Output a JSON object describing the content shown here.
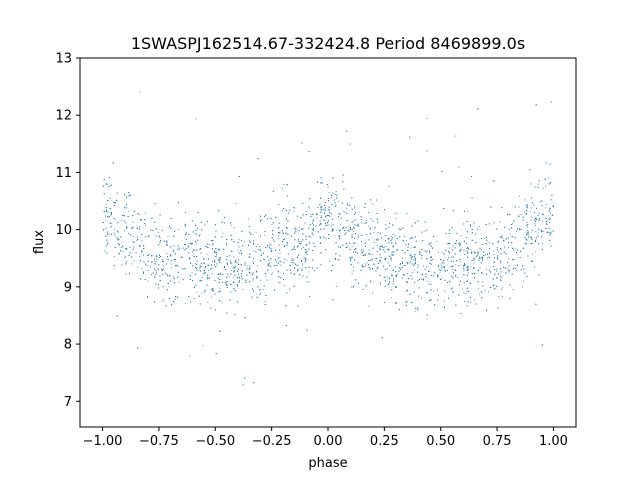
{
  "chart_data": {
    "type": "scatter",
    "title": "1SWASPJ162514.67-332424.8 Period 8469899.0s",
    "xlabel": "phase",
    "ylabel": "flux",
    "xlim": [
      -1.1,
      1.1
    ],
    "ylim": [
      6.55,
      13.0
    ],
    "xticks": [
      -1.0,
      -0.75,
      -0.5,
      -0.25,
      0.0,
      0.25,
      0.5,
      0.75,
      1.0
    ],
    "xtick_labels": [
      "−1.00",
      "−0.75",
      "−0.50",
      "−0.25",
      "0.00",
      "0.25",
      "0.50",
      "0.75",
      "1.00"
    ],
    "yticks": [
      7,
      8,
      9,
      10,
      11,
      12,
      13
    ],
    "ytick_labels": [
      "7",
      "8",
      "9",
      "10",
      "11",
      "12",
      "13"
    ],
    "grid": false,
    "marker_color": "#1f77b4",
    "curve_description": "dense folded light curve, mirrored about phase 0; higher flux near phase 0 and ±1, lower near ±0.5",
    "series": [
      {
        "points_x": [
          -1.0,
          -0.9,
          -0.8,
          -0.7,
          -0.6,
          -0.5,
          -0.4,
          -0.3,
          -0.2,
          -0.1,
          0.0,
          0.1,
          0.2,
          0.3,
          0.4,
          0.5,
          0.6,
          0.7,
          0.8,
          0.9,
          1.0
        ],
        "mean_y": [
          10.3,
          10.0,
          9.7,
          9.4,
          9.5,
          9.4,
          9.35,
          9.5,
          9.7,
          9.8,
          10.3,
          9.8,
          9.7,
          9.5,
          9.35,
          9.4,
          9.5,
          9.4,
          9.7,
          10.0,
          10.3
        ]
      }
    ]
  }
}
